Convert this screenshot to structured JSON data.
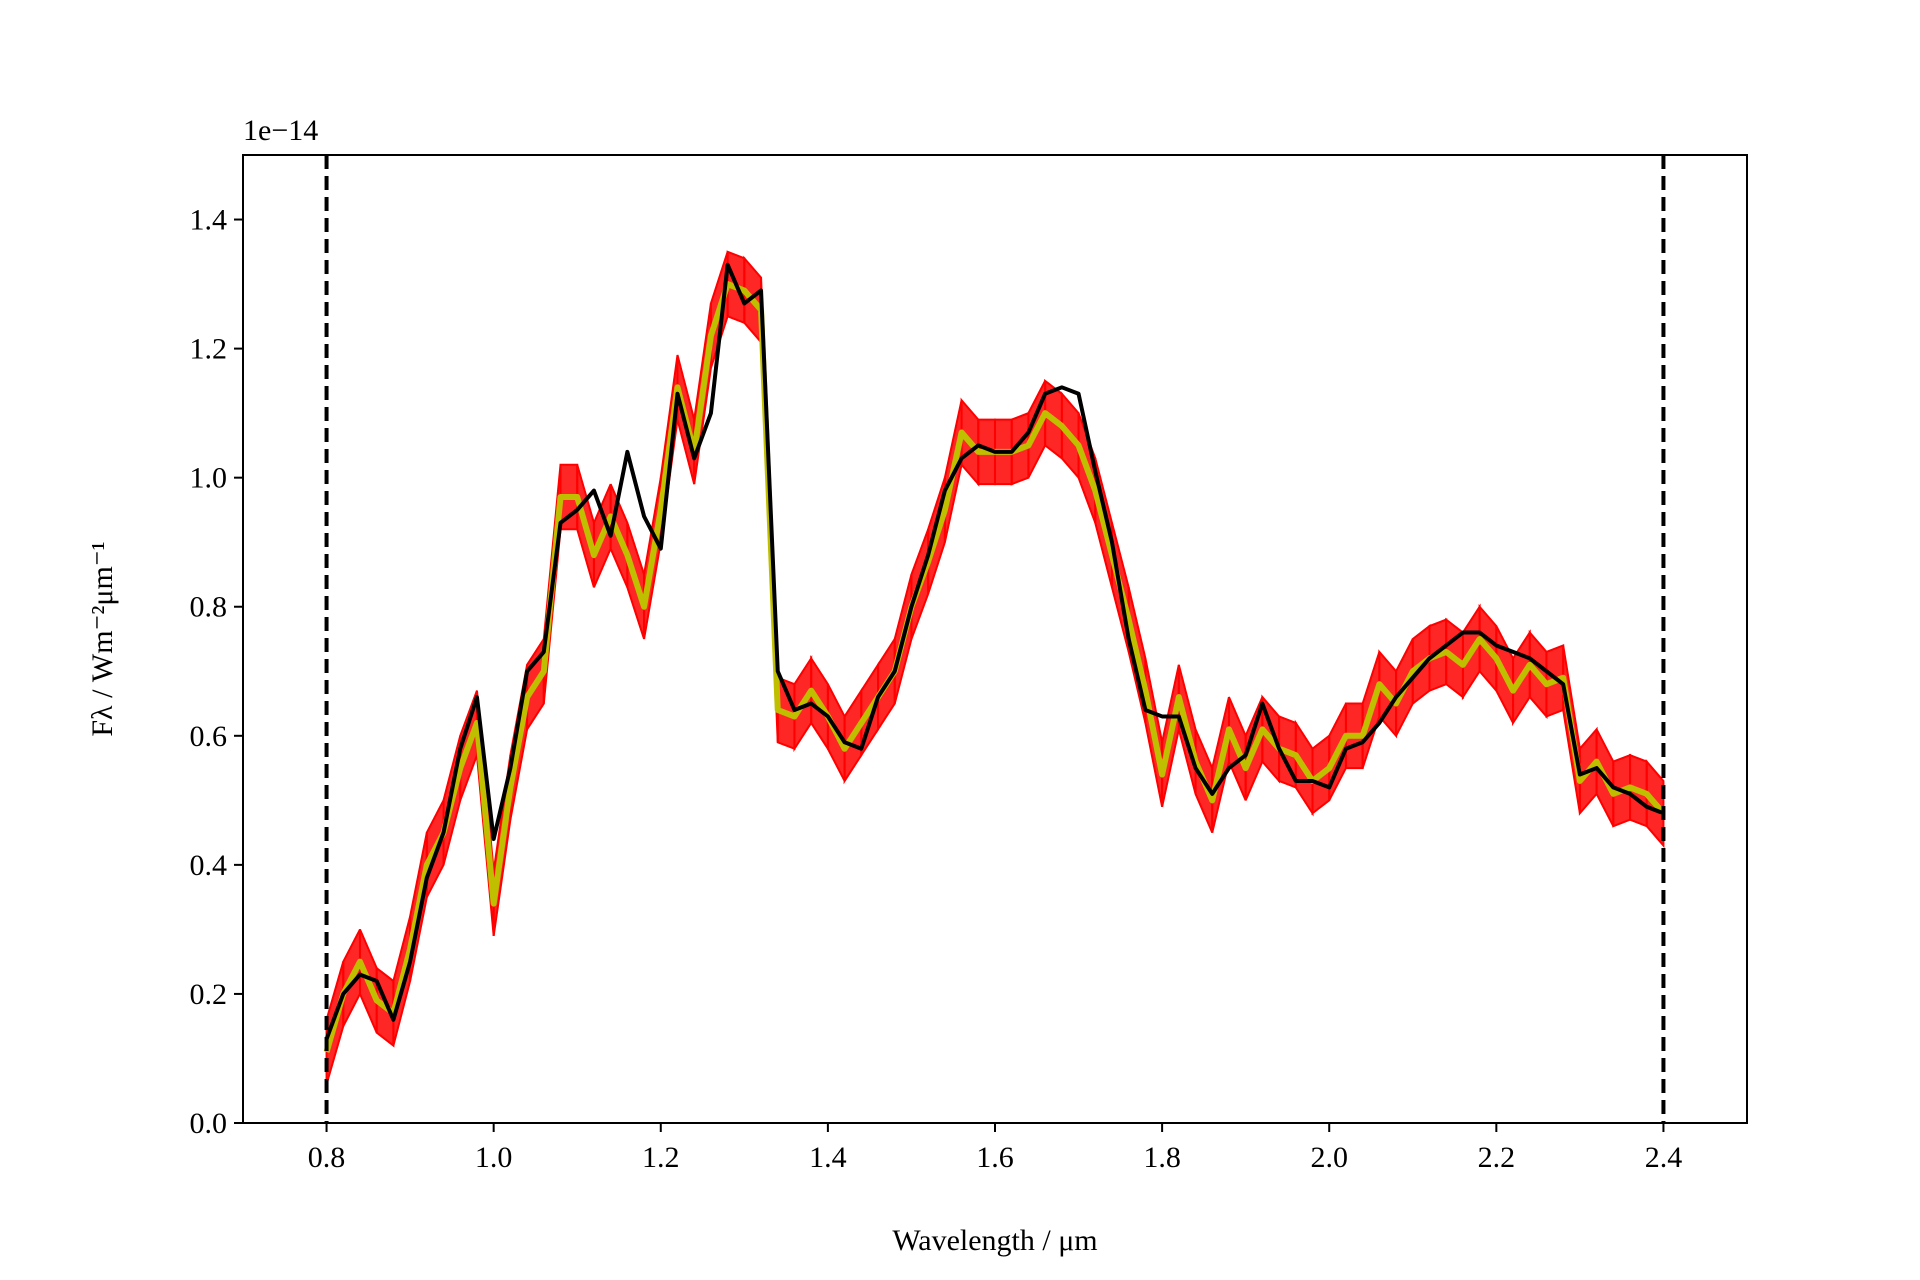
{
  "chart_data": {
    "type": "line",
    "y_offset_label": "1e−14",
    "xlabel": "Wavelength / μm",
    "ylabel": "Fλ / Wm⁻²μm⁻¹",
    "xlim": [
      0.7,
      2.5
    ],
    "ylim": [
      0,
      1.5
    ],
    "xticks": [
      0.8,
      {
        "value": 1,
        "label": "1.0"
      },
      1.2,
      1.4,
      1.6,
      1.8,
      {
        "value": 2,
        "label": "2.0"
      },
      2.2,
      2.4
    ],
    "yticks": [
      {
        "value": 0,
        "label": "0.0"
      },
      0.2,
      0.4,
      0.6,
      0.8,
      {
        "value": 1,
        "label": "1.0"
      },
      1.2,
      1.4
    ],
    "vlines": [
      0.8,
      2.4
    ],
    "x": [
      0.8,
      0.82,
      0.84,
      0.86,
      0.88,
      0.9,
      0.92,
      0.94,
      0.96,
      0.98,
      1.0,
      1.02,
      1.04,
      1.06,
      1.08,
      1.1,
      1.12,
      1.14,
      1.16,
      1.18,
      1.2,
      1.22,
      1.24,
      1.26,
      1.28,
      1.3,
      1.32,
      1.34,
      1.36,
      1.38,
      1.4,
      1.42,
      1.44,
      1.46,
      1.48,
      1.5,
      1.52,
      1.54,
      1.56,
      1.58,
      1.6,
      1.62,
      1.64,
      1.66,
      1.68,
      1.7,
      1.72,
      1.74,
      1.76,
      1.78,
      1.8,
      1.82,
      1.84,
      1.86,
      1.88,
      1.9,
      1.92,
      1.94,
      1.96,
      1.98,
      2.0,
      2.02,
      2.04,
      2.06,
      2.08,
      2.1,
      2.12,
      2.14,
      2.16,
      2.18,
      2.2,
      2.22,
      2.24,
      2.26,
      2.28,
      2.3,
      2.32,
      2.34,
      2.36,
      2.38,
      2.4
    ],
    "band": {
      "color": "#ff0000",
      "upper": [
        0.16,
        0.25,
        0.3,
        0.24,
        0.22,
        0.32,
        0.45,
        0.5,
        0.6,
        0.67,
        0.39,
        0.57,
        0.71,
        0.75,
        1.02,
        1.02,
        0.93,
        0.99,
        0.93,
        0.85,
        1.0,
        1.19,
        1.09,
        1.27,
        1.35,
        1.34,
        1.31,
        0.69,
        0.68,
        0.72,
        0.68,
        0.63,
        0.67,
        0.71,
        0.75,
        0.85,
        0.92,
        1.0,
        1.12,
        1.09,
        1.09,
        1.09,
        1.1,
        1.15,
        1.13,
        1.1,
        1.03,
        0.93,
        0.83,
        0.72,
        0.59,
        0.71,
        0.61,
        0.55,
        0.66,
        0.6,
        0.66,
        0.63,
        0.62,
        0.58,
        0.6,
        0.65,
        0.65,
        0.73,
        0.7,
        0.75,
        0.77,
        0.78,
        0.76,
        0.8,
        0.77,
        0.72,
        0.76,
        0.73,
        0.74,
        0.58,
        0.61,
        0.56,
        0.57,
        0.56,
        0.53
      ],
      "lower": [
        0.06,
        0.15,
        0.2,
        0.14,
        0.12,
        0.22,
        0.35,
        0.4,
        0.5,
        0.57,
        0.29,
        0.47,
        0.61,
        0.65,
        0.92,
        0.92,
        0.83,
        0.89,
        0.83,
        0.75,
        0.9,
        1.09,
        0.99,
        1.17,
        1.25,
        1.24,
        1.21,
        0.59,
        0.58,
        0.62,
        0.58,
        0.53,
        0.57,
        0.61,
        0.65,
        0.75,
        0.82,
        0.9,
        1.02,
        0.99,
        0.99,
        0.99,
        1.0,
        1.05,
        1.03,
        1.0,
        0.93,
        0.83,
        0.73,
        0.62,
        0.49,
        0.61,
        0.51,
        0.45,
        0.56,
        0.5,
        0.56,
        0.53,
        0.52,
        0.48,
        0.5,
        0.55,
        0.55,
        0.63,
        0.6,
        0.65,
        0.67,
        0.68,
        0.66,
        0.7,
        0.67,
        0.62,
        0.66,
        0.63,
        0.64,
        0.48,
        0.51,
        0.46,
        0.47,
        0.46,
        0.43
      ]
    },
    "series": [
      {
        "color": "#bfbf00",
        "values": [
          0.11,
          0.2,
          0.25,
          0.19,
          0.17,
          0.27,
          0.4,
          0.45,
          0.55,
          0.62,
          0.34,
          0.52,
          0.66,
          0.7,
          0.97,
          0.97,
          0.88,
          0.94,
          0.88,
          0.8,
          0.95,
          1.14,
          1.04,
          1.22,
          1.3,
          1.29,
          1.26,
          0.64,
          0.63,
          0.67,
          0.63,
          0.58,
          0.62,
          0.66,
          0.7,
          0.8,
          0.87,
          0.95,
          1.07,
          1.04,
          1.04,
          1.04,
          1.05,
          1.1,
          1.08,
          1.05,
          0.98,
          0.88,
          0.78,
          0.67,
          0.54,
          0.66,
          0.56,
          0.5,
          0.61,
          0.55,
          0.61,
          0.58,
          0.57,
          0.53,
          0.55,
          0.6,
          0.6,
          0.68,
          0.65,
          0.7,
          0.72,
          0.73,
          0.71,
          0.75,
          0.72,
          0.67,
          0.71,
          0.68,
          0.69,
          0.53,
          0.56,
          0.51,
          0.52,
          0.51,
          0.48
        ]
      },
      {
        "color": "#000000",
        "values": [
          0.13,
          0.2,
          0.23,
          0.22,
          0.16,
          0.25,
          0.38,
          0.45,
          0.58,
          0.66,
          0.44,
          0.55,
          0.7,
          0.73,
          0.93,
          0.95,
          0.98,
          0.91,
          1.04,
          0.94,
          0.89,
          1.13,
          1.03,
          1.1,
          1.33,
          1.27,
          1.29,
          0.7,
          0.64,
          0.65,
          0.63,
          0.59,
          0.58,
          0.66,
          0.7,
          0.8,
          0.88,
          0.98,
          1.03,
          1.05,
          1.04,
          1.04,
          1.07,
          1.13,
          1.14,
          1.13,
          1.01,
          0.9,
          0.75,
          0.64,
          0.63,
          0.63,
          0.55,
          0.51,
          0.55,
          0.57,
          0.65,
          0.58,
          0.53,
          0.53,
          0.52,
          0.58,
          0.59,
          0.62,
          0.66,
          0.69,
          0.72,
          0.74,
          0.76,
          0.76,
          0.74,
          0.73,
          0.72,
          0.7,
          0.68,
          0.54,
          0.55,
          0.52,
          0.51,
          0.49,
          0.48
        ]
      }
    ]
  }
}
